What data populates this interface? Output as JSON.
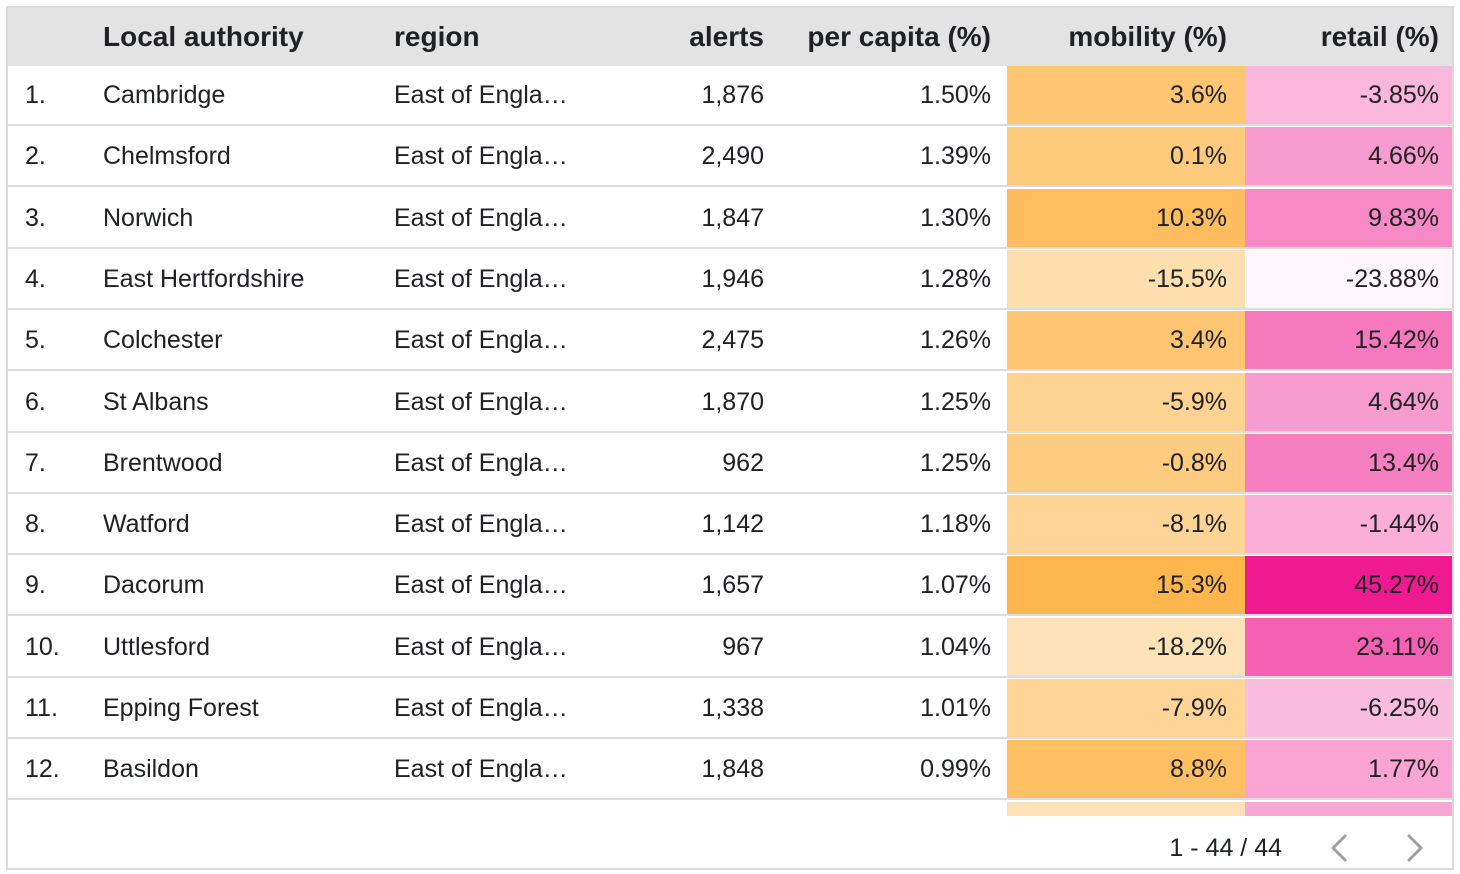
{
  "table": {
    "headers": {
      "rank": "",
      "authority": "Local authority",
      "region": "region",
      "alerts": "alerts",
      "per_capita": "per capita (%)",
      "mobility": "mobility (%)",
      "retail": "retail (%)"
    },
    "rows": [
      {
        "rank": "1.",
        "authority": "Cambridge",
        "region": "East of Engla…",
        "alerts": "1,876",
        "per_capita": "1.50%",
        "mobility": "3.6%",
        "retail": "-3.85%",
        "mobility_value": 3.6,
        "retail_value": -3.85
      },
      {
        "rank": "2.",
        "authority": "Chelmsford",
        "region": "East of Engla…",
        "alerts": "2,490",
        "per_capita": "1.39%",
        "mobility": "0.1%",
        "retail": "4.66%",
        "mobility_value": 0.1,
        "retail_value": 4.66
      },
      {
        "rank": "3.",
        "authority": "Norwich",
        "region": "East of Engla…",
        "alerts": "1,847",
        "per_capita": "1.30%",
        "mobility": "10.3%",
        "retail": "9.83%",
        "mobility_value": 10.3,
        "retail_value": 9.83
      },
      {
        "rank": "4.",
        "authority": "East Hertfordshire",
        "region": "East of Engla…",
        "alerts": "1,946",
        "per_capita": "1.28%",
        "mobility": "-15.5%",
        "retail": "-23.88%",
        "mobility_value": -15.5,
        "retail_value": -23.88
      },
      {
        "rank": "5.",
        "authority": "Colchester",
        "region": "East of Engla…",
        "alerts": "2,475",
        "per_capita": "1.26%",
        "mobility": "3.4%",
        "retail": "15.42%",
        "mobility_value": 3.4,
        "retail_value": 15.42
      },
      {
        "rank": "6.",
        "authority": "St Albans",
        "region": "East of Engla…",
        "alerts": "1,870",
        "per_capita": "1.25%",
        "mobility": "-5.9%",
        "retail": "4.64%",
        "mobility_value": -5.9,
        "retail_value": 4.64
      },
      {
        "rank": "7.",
        "authority": "Brentwood",
        "region": "East of Engla…",
        "alerts": "962",
        "per_capita": "1.25%",
        "mobility": "-0.8%",
        "retail": "13.4%",
        "mobility_value": -0.8,
        "retail_value": 13.4
      },
      {
        "rank": "8.",
        "authority": "Watford",
        "region": "East of Engla…",
        "alerts": "1,142",
        "per_capita": "1.18%",
        "mobility": "-8.1%",
        "retail": "-1.44%",
        "mobility_value": -8.1,
        "retail_value": -1.44
      },
      {
        "rank": "9.",
        "authority": "Dacorum",
        "region": "East of Engla…",
        "alerts": "1,657",
        "per_capita": "1.07%",
        "mobility": "15.3%",
        "retail": "45.27%",
        "mobility_value": 15.3,
        "retail_value": 45.27
      },
      {
        "rank": "10.",
        "authority": "Uttlesford",
        "region": "East of Engla…",
        "alerts": "967",
        "per_capita": "1.04%",
        "mobility": "-18.2%",
        "retail": "23.11%",
        "mobility_value": -18.2,
        "retail_value": 23.11
      },
      {
        "rank": "11.",
        "authority": "Epping Forest",
        "region": "East of Engla…",
        "alerts": "1,338",
        "per_capita": "1.01%",
        "mobility": "-7.9%",
        "retail": "-6.25%",
        "mobility_value": -7.9,
        "retail_value": -6.25
      },
      {
        "rank": "12.",
        "authority": "Basildon",
        "region": "East of Engla…",
        "alerts": "1,848",
        "per_capita": "0.99%",
        "mobility": "8.8%",
        "retail": "1.77%",
        "mobility_value": 8.8,
        "retail_value": 1.77
      }
    ]
  },
  "pagination": {
    "label": "1 - 44 / 44",
    "prev_icon": "chevron-left-icon",
    "next_icon": "chevron-right-icon"
  },
  "colors": {
    "header_bg": "#e3e3e3",
    "mobility_light": "#fde2b7",
    "mobility_dark": "#ffb74d",
    "retail_light": "#fff5fa",
    "retail_dark": "#ef1a90",
    "row_border": "#dcdcdc",
    "pager_icon": "#9e9e9e"
  }
}
